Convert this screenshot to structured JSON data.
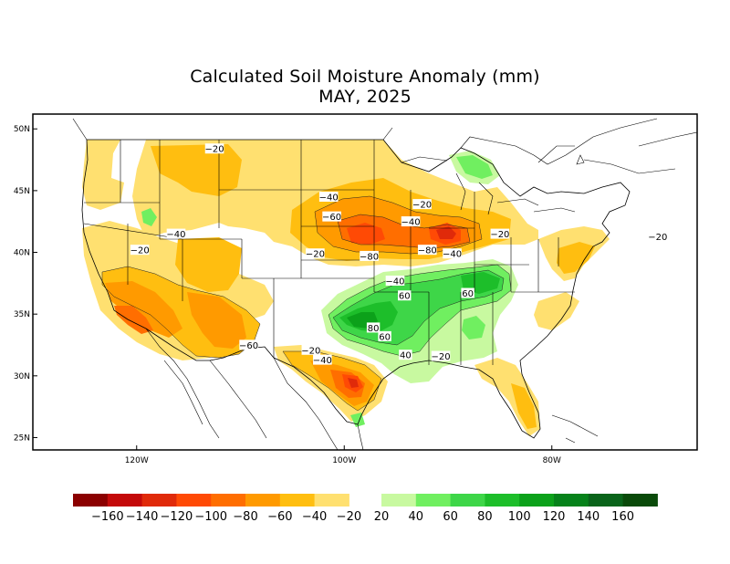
{
  "title": {
    "line1": "Calculated Soil Moisture Anomaly (mm)",
    "line2": "MAY, 2025"
  },
  "axes": {
    "lat_labels": [
      "50N",
      "45N",
      "40N",
      "35N",
      "30N",
      "25N"
    ],
    "lat_values": [
      50,
      45,
      40,
      35,
      30,
      25
    ],
    "lon_labels": [
      "120W",
      "100W",
      "80W"
    ],
    "lon_values": [
      -120,
      -100,
      -80
    ],
    "lon_range": [
      -130,
      -66
    ],
    "lat_range": [
      24,
      51.2
    ]
  },
  "legend": {
    "dry_colors": [
      "#8b0000",
      "#c40a0a",
      "#e02a0a",
      "#ff4a05",
      "#ff6e00",
      "#ff9a00",
      "#ffbe10",
      "#ffe070"
    ],
    "wet_colors": [
      "#c8f9a0",
      "#70ef60",
      "#3ed648",
      "#1dbe2a",
      "#0ca11a",
      "#06821a",
      "#0a641a",
      "#0a4a0a"
    ],
    "labels": [
      "−160",
      "−140",
      "−120",
      "−100",
      "−80",
      "−60",
      "−40",
      "−20",
      "20",
      "40",
      "60",
      "80",
      "100",
      "120",
      "140",
      "160"
    ]
  },
  "contour_labels": [
    {
      "text": "−20",
      "lon": -112.5,
      "lat": 48.3
    },
    {
      "text": "−40",
      "lon": -101.5,
      "lat": 44.4
    },
    {
      "text": "−60",
      "lon": -101.2,
      "lat": 42.8
    },
    {
      "text": "−20",
      "lon": -92.5,
      "lat": 43.8
    },
    {
      "text": "−40",
      "lon": -93.6,
      "lat": 42.4
    },
    {
      "text": "−20",
      "lon": -85.0,
      "lat": 41.4
    },
    {
      "text": "−80",
      "lon": -97.6,
      "lat": 39.6
    },
    {
      "text": "−80",
      "lon": -92.0,
      "lat": 40.1
    },
    {
      "text": "−40",
      "lon": -89.6,
      "lat": 39.8
    },
    {
      "text": "−20",
      "lon": -102.8,
      "lat": 39.8
    },
    {
      "text": "−20",
      "lon": -119.7,
      "lat": 40.1
    },
    {
      "text": "−40",
      "lon": -116.2,
      "lat": 41.4
    },
    {
      "text": "−20",
      "lon": -69.8,
      "lat": 41.2
    },
    {
      "text": "−40",
      "lon": -95.1,
      "lat": 37.6
    },
    {
      "text": "60",
      "lon": -94.2,
      "lat": 36.4
    },
    {
      "text": "60",
      "lon": -88.1,
      "lat": 36.6
    },
    {
      "text": "80",
      "lon": -97.2,
      "lat": 33.8
    },
    {
      "text": "60",
      "lon": -96.1,
      "lat": 33.1
    },
    {
      "text": "40",
      "lon": -94.1,
      "lat": 31.6
    },
    {
      "text": "−20",
      "lon": -90.7,
      "lat": 31.5
    },
    {
      "text": "−60",
      "lon": -109.2,
      "lat": 32.4
    },
    {
      "text": "−20",
      "lon": -103.2,
      "lat": 32.0
    },
    {
      "text": "−40",
      "lon": -102.1,
      "lat": 31.2
    }
  ]
}
